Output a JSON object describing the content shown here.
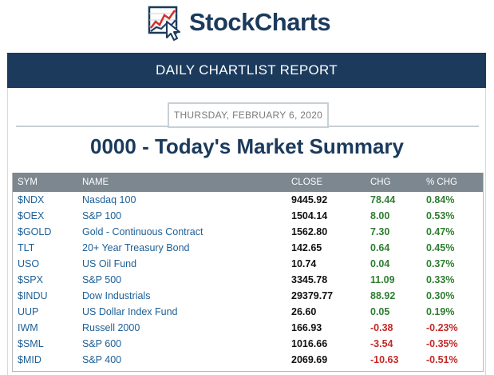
{
  "brand": {
    "name": "StockCharts",
    "color": "#1b3a5c",
    "icon": "chart-cursor-logo-icon"
  },
  "banner": {
    "title": "DAILY CHARTLIST REPORT"
  },
  "report": {
    "date": "THURSDAY, FEBRUARY 6, 2020",
    "title": "0000 - Today's Market Summary"
  },
  "table": {
    "headers": {
      "sym": "SYM",
      "name": "NAME",
      "close": "CLOSE",
      "chg": "CHG",
      "pct": "% CHG"
    },
    "rows": [
      {
        "sym": "$NDX",
        "name": "Nasdaq 100",
        "close": "9445.92",
        "chg": "78.44",
        "pct": "0.84%",
        "dir": "pos"
      },
      {
        "sym": "$OEX",
        "name": "S&P 100",
        "close": "1504.14",
        "chg": "8.00",
        "pct": "0.53%",
        "dir": "pos"
      },
      {
        "sym": "$GOLD",
        "name": "Gold - Continuous Contract",
        "close": "1562.80",
        "chg": "7.30",
        "pct": "0.47%",
        "dir": "pos"
      },
      {
        "sym": "TLT",
        "name": "20+ Year Treasury Bond",
        "close": "142.65",
        "chg": "0.64",
        "pct": "0.45%",
        "dir": "pos"
      },
      {
        "sym": "USO",
        "name": "US Oil Fund",
        "close": "10.74",
        "chg": "0.04",
        "pct": "0.37%",
        "dir": "pos"
      },
      {
        "sym": "$SPX",
        "name": "S&P 500",
        "close": "3345.78",
        "chg": "11.09",
        "pct": "0.33%",
        "dir": "pos"
      },
      {
        "sym": "$INDU",
        "name": "Dow Industrials",
        "close": "29379.77",
        "chg": "88.92",
        "pct": "0.30%",
        "dir": "pos"
      },
      {
        "sym": "UUP",
        "name": "US Dollar Index Fund",
        "close": "26.60",
        "chg": "0.05",
        "pct": "0.19%",
        "dir": "pos"
      },
      {
        "sym": "IWM",
        "name": "Russell 2000",
        "close": "166.93",
        "chg": "-0.38",
        "pct": "-0.23%",
        "dir": "neg"
      },
      {
        "sym": "$SML",
        "name": "S&P 600",
        "close": "1016.66",
        "chg": "-3.54",
        "pct": "-0.35%",
        "dir": "neg"
      },
      {
        "sym": "$MID",
        "name": "S&P 400",
        "close": "2069.69",
        "chg": "-10.63",
        "pct": "-0.51%",
        "dir": "neg"
      }
    ]
  },
  "colors": {
    "positive": "#2f7d32",
    "negative": "#c62828",
    "link": "#1d5f96",
    "header_bg": "#7c8790"
  }
}
